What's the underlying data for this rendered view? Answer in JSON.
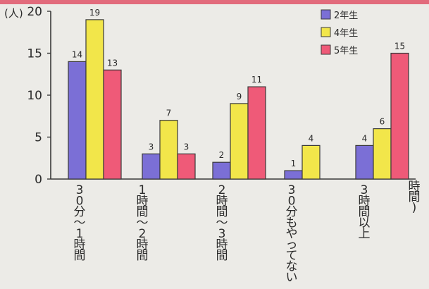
{
  "chart_data": {
    "type": "bar",
    "title": "",
    "y_unit_label": "(人)",
    "x_unit_label": "時間)",
    "categories": [
      "30分〜1時間",
      "1時間〜2時間",
      "2時間〜3時間",
      "30分もやってない",
      "3時間以上"
    ],
    "category_labels_vertical": [
      [
        "3",
        "0",
        "分",
        "〜",
        "1",
        "時",
        "間"
      ],
      [
        "1",
        "時",
        "間",
        "〜",
        "2",
        "時",
        "間"
      ],
      [
        "2",
        "時",
        "間",
        "〜",
        "3",
        "時",
        "間"
      ],
      [
        "3",
        "0",
        "分",
        "も",
        "や",
        "っ",
        "て",
        "な",
        "い"
      ],
      [
        "3",
        "時",
        "間",
        "以",
        "上"
      ]
    ],
    "series": [
      {
        "name": "2年生",
        "color": "#7b6fd6",
        "values": [
          14,
          3,
          2,
          1,
          4
        ]
      },
      {
        "name": "4年生",
        "color": "#f2e64a",
        "values": [
          19,
          7,
          9,
          4,
          6
        ]
      },
      {
        "name": "5年生",
        "color": "#ef5a78",
        "values": [
          13,
          3,
          11,
          0,
          15
        ]
      }
    ],
    "bar_labels": [
      [
        "14",
        "3",
        "2",
        "1",
        "4"
      ],
      [
        "19",
        "7",
        "9",
        "4",
        "6"
      ],
      [
        "13",
        "3",
        "11",
        "",
        "15"
      ]
    ],
    "y_ticks": [
      "0",
      "5",
      "10",
      "15",
      "20"
    ],
    "ylim": [
      0,
      20
    ],
    "grid": false,
    "legend_position": "top-right"
  }
}
